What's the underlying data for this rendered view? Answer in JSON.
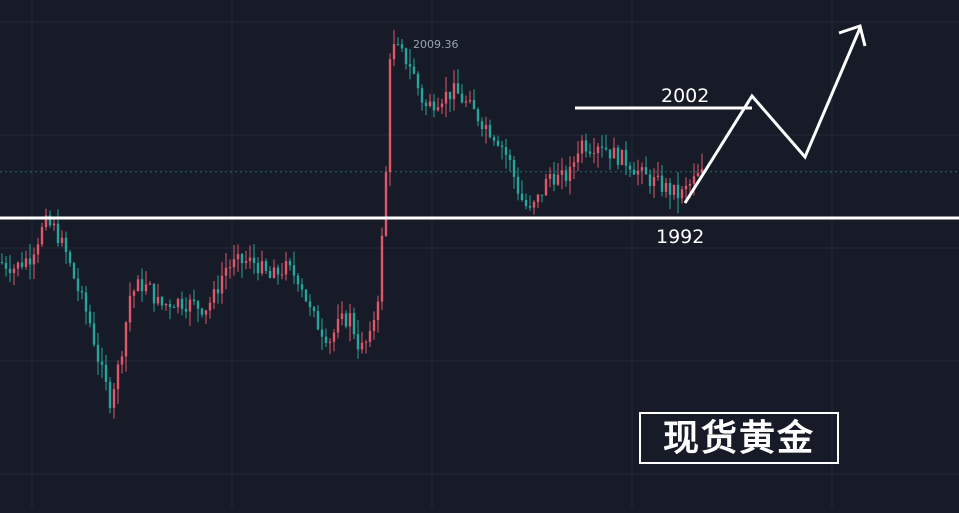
{
  "chart_data": {
    "type": "candlestick",
    "title": "",
    "peak_label": "2009.36",
    "watermark": "现货黄金",
    "levels": [
      {
        "label": "2002",
        "value": 2002
      },
      {
        "label": "1992",
        "value": 1992
      }
    ],
    "colors": {
      "background": "#161b27",
      "grid": "#232a38",
      "up": "#e0566b",
      "down": "#26a69a",
      "annotation": "#ffffff",
      "peak_label": "#9aa3b2",
      "last_price_line": "#26a69a"
    },
    "grid": true,
    "last_price": 1996.2
  }
}
